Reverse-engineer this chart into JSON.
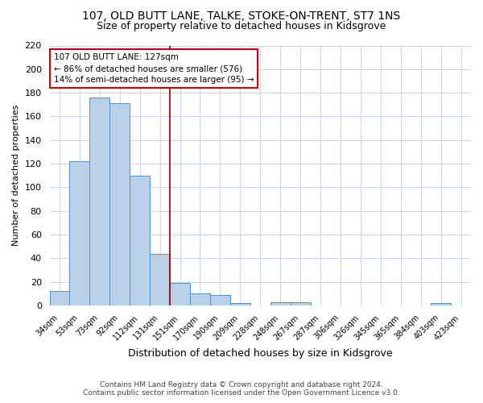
{
  "title": "107, OLD BUTT LANE, TALKE, STOKE-ON-TRENT, ST7 1NS",
  "subtitle": "Size of property relative to detached houses in Kidsgrove",
  "xlabel": "Distribution of detached houses by size in Kidsgrove",
  "ylabel": "Number of detached properties",
  "categories": [
    "34sqm",
    "53sqm",
    "73sqm",
    "92sqm",
    "112sqm",
    "131sqm",
    "151sqm",
    "170sqm",
    "190sqm",
    "209sqm",
    "228sqm",
    "248sqm",
    "267sqm",
    "287sqm",
    "306sqm",
    "326sqm",
    "345sqm",
    "365sqm",
    "384sqm",
    "403sqm",
    "423sqm"
  ],
  "values": [
    12,
    122,
    176,
    171,
    110,
    44,
    19,
    10,
    9,
    2,
    0,
    3,
    3,
    0,
    0,
    0,
    0,
    0,
    0,
    2,
    0
  ],
  "bar_color": "#b8d0e8",
  "bar_edge_color": "#5090c8",
  "vline_x": 5.5,
  "vline_color": "#8b0000",
  "annotation_text": "107 OLD BUTT LANE: 127sqm\n← 86% of detached houses are smaller (576)\n14% of semi-detached houses are larger (95) →",
  "annotation_box_color": "#ffffff",
  "annotation_box_edge": "#cc0000",
  "ylim": [
    0,
    220
  ],
  "yticks": [
    0,
    20,
    40,
    60,
    80,
    100,
    120,
    140,
    160,
    180,
    200,
    220
  ],
  "footer_line1": "Contains HM Land Registry data © Crown copyright and database right 2024.",
  "footer_line2": "Contains public sector information licensed under the Open Government Licence v3.0.",
  "bg_color": "#ffffff",
  "grid_color": "#c8d8ec"
}
